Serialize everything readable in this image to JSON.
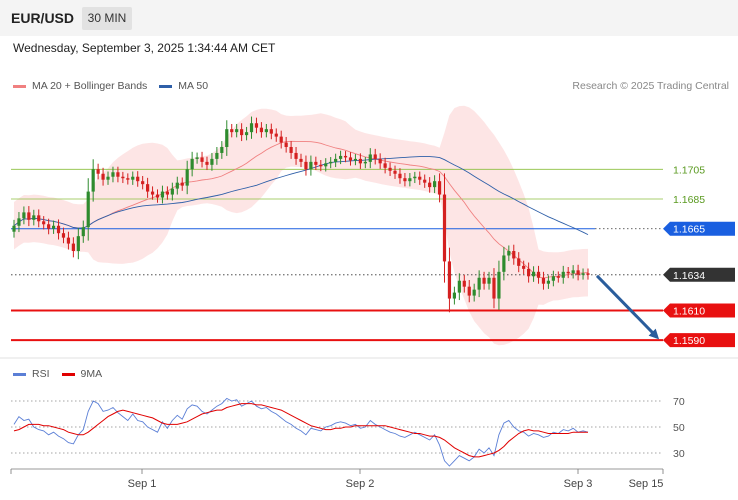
{
  "header": {
    "symbol": "EUR/USD",
    "timeframe": "30 MIN"
  },
  "datetime": "Wednesday, September 3, 2025 1:34:44 AM CET",
  "legend": {
    "ma20_label": "MA 20 + Bollinger Bands",
    "ma50_label": "MA 50",
    "ma20_color": "#f08080",
    "ma50_color": "#2e5fa8",
    "copyright": "Research © 2025 Trading Central"
  },
  "rsi_legend": {
    "rsi_label": "RSI",
    "ma_label": "9MA",
    "rsi_color": "#5b7fd6",
    "ma_color": "#e00000"
  },
  "chart_data": [
    {
      "type": "candlestick",
      "ylim": [
        1.1578,
        1.1755
      ],
      "x_tick_labels": [
        "Sep 1",
        "Sep 2",
        "Sep 3",
        "Sep 15"
      ],
      "levels": [
        {
          "label": "1.1705",
          "value": 1.1705,
          "kind": "target",
          "color": "#8cbf3f"
        },
        {
          "label": "1.1685",
          "value": 1.1685,
          "kind": "target",
          "color": "#8cbf3f"
        },
        {
          "label": "1.1665",
          "value": 1.1665,
          "kind": "pivot",
          "color": "#1a5fe0"
        },
        {
          "label": "1.1634",
          "value": 1.1634,
          "kind": "last_price",
          "color": "#333333"
        },
        {
          "label": "1.1610",
          "value": 1.161,
          "kind": "support",
          "color": "#e81010"
        },
        {
          "label": "1.1590",
          "value": 1.159,
          "kind": "support",
          "color": "#e81010"
        }
      ],
      "close": [
        1.1667,
        1.1672,
        1.1676,
        1.1671,
        1.1674,
        1.167,
        1.1668,
        1.1665,
        1.1667,
        1.1662,
        1.1659,
        1.1655,
        1.165,
        1.166,
        1.1666,
        1.169,
        1.1705,
        1.1702,
        1.1698,
        1.17,
        1.1703,
        1.17,
        1.1699,
        1.1698,
        1.17,
        1.1697,
        1.1695,
        1.169,
        1.1688,
        1.1686,
        1.169,
        1.1688,
        1.1692,
        1.1696,
        1.1694,
        1.1705,
        1.1712,
        1.1713,
        1.171,
        1.1708,
        1.1712,
        1.1716,
        1.172,
        1.1732,
        1.173,
        1.1732,
        1.1728,
        1.173,
        1.1736,
        1.1733,
        1.173,
        1.1732,
        1.1729,
        1.1727,
        1.1723,
        1.172,
        1.1716,
        1.1712,
        1.171,
        1.1705,
        1.171,
        1.1708,
        1.1707,
        1.1709,
        1.171,
        1.1712,
        1.1714,
        1.1713,
        1.1711,
        1.1712,
        1.1709,
        1.171,
        1.1715,
        1.1712,
        1.1709,
        1.1706,
        1.1704,
        1.1702,
        1.1699,
        1.1697,
        1.1699,
        1.17,
        1.1698,
        1.1696,
        1.1693,
        1.1697,
        1.1688,
        1.1643,
        1.1618,
        1.1622,
        1.163,
        1.1626,
        1.162,
        1.1624,
        1.1632,
        1.1628,
        1.1632,
        1.1618,
        1.1636,
        1.1647,
        1.165,
        1.1645,
        1.164,
        1.1638,
        1.1633,
        1.1636,
        1.1632,
        1.1628,
        1.163,
        1.1633,
        1.1632,
        1.1636,
        1.1635,
        1.1637,
        1.1634,
        1.1635,
        1.1634
      ]
    },
    {
      "type": "line",
      "name": "RSI",
      "levels": [
        70,
        50,
        30
      ],
      "ylim": [
        20,
        80
      ],
      "rsi": [
        52,
        58,
        55,
        56,
        50,
        48,
        47,
        44,
        46,
        43,
        41,
        38,
        37,
        44,
        48,
        62,
        70,
        68,
        62,
        63,
        65,
        61,
        58,
        55,
        60,
        55,
        54,
        50,
        48,
        46,
        54,
        49,
        55,
        59,
        56,
        64,
        67,
        66,
        62,
        60,
        63,
        66,
        68,
        72,
        70,
        71,
        66,
        68,
        70,
        66,
        64,
        65,
        62,
        60,
        57,
        54,
        52,
        49,
        47,
        44,
        49,
        48,
        47,
        50,
        51,
        53,
        54,
        53,
        51,
        52,
        49,
        50,
        55,
        52,
        50,
        48,
        46,
        45,
        43,
        42,
        44,
        46,
        44,
        42,
        40,
        44,
        36,
        24,
        20,
        24,
        28,
        26,
        24,
        27,
        33,
        30,
        34,
        28,
        44,
        53,
        55,
        50,
        47,
        46,
        43,
        45,
        44,
        42,
        43,
        46,
        45,
        48,
        47,
        49,
        46,
        47,
        46
      ],
      "ma9": [
        47,
        48,
        50,
        52,
        52,
        52,
        51,
        51,
        50,
        49,
        48,
        46,
        45,
        44,
        44,
        46,
        49,
        52,
        55,
        58,
        60,
        62,
        63,
        62,
        61,
        60,
        59,
        58,
        57,
        55,
        53,
        52,
        52,
        52,
        53,
        54,
        56,
        58,
        60,
        61,
        62,
        63,
        63,
        65,
        66,
        67,
        68,
        68,
        68,
        67,
        67,
        66,
        65,
        64,
        63,
        61,
        59,
        57,
        55,
        53,
        51,
        50,
        49,
        48,
        48,
        49,
        49,
        50,
        50,
        51,
        51,
        51,
        51,
        51,
        51,
        51,
        50,
        49,
        48,
        47,
        46,
        45,
        45,
        44,
        43,
        43,
        42,
        40,
        37,
        34,
        32,
        30,
        28,
        27,
        27,
        28,
        29,
        30,
        32,
        35,
        39,
        42,
        45,
        47,
        48,
        47,
        47,
        46,
        45,
        45,
        45,
        45,
        45,
        46,
        46,
        46,
        46
      ]
    }
  ]
}
